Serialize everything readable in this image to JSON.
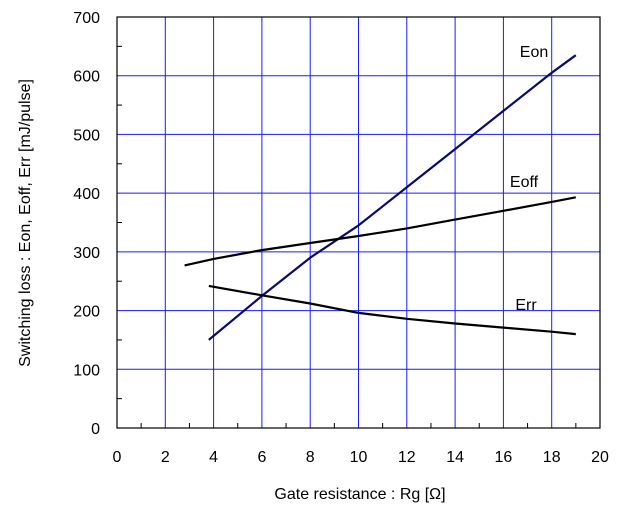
{
  "chart_data": {
    "type": "line",
    "xlabel": "Gate resistance : Rg [Ω]",
    "ylabel": "Switching loss : Eon, Eoff, Err [mJ/pulse]",
    "xlim": [
      0,
      20
    ],
    "ylim": [
      0,
      700
    ],
    "xticks": [
      "0",
      "2",
      "4",
      "6",
      "8",
      "10",
      "12",
      "14",
      "16",
      "18",
      "20"
    ],
    "yticks": [
      "0",
      "100",
      "200",
      "300",
      "400",
      "500",
      "600",
      "700"
    ],
    "grid": true,
    "colors": {
      "grid": "#1a1aff",
      "eon": "#0a0a6e",
      "eoff": "#000000",
      "err": "#000000"
    },
    "series": [
      {
        "name": "Eon",
        "x": [
          3.8,
          6,
          8,
          10,
          12,
          14,
          16,
          18,
          19
        ],
        "y": [
          150,
          225,
          290,
          345,
          410,
          475,
          540,
          605,
          635
        ]
      },
      {
        "name": "Eoff",
        "x": [
          2.8,
          4,
          6,
          8,
          10,
          12,
          14,
          16,
          18,
          19
        ],
        "y": [
          277,
          288,
          303,
          315,
          327,
          340,
          355,
          370,
          385,
          393
        ]
      },
      {
        "name": "Err",
        "x": [
          3.8,
          6,
          8,
          10,
          12,
          14,
          16,
          18,
          19
        ],
        "y": [
          242,
          226,
          212,
          196,
          186,
          178,
          171,
          164,
          160
        ]
      }
    ]
  }
}
